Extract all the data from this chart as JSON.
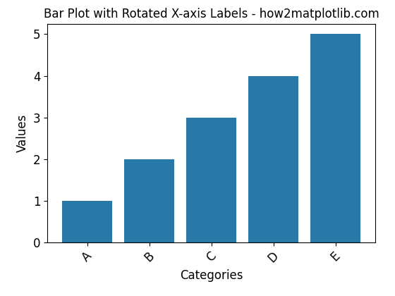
{
  "categories": [
    "A",
    "B",
    "C",
    "D",
    "E"
  ],
  "values": [
    1,
    2,
    3,
    4,
    5
  ],
  "bar_color": "#2878a8",
  "title": "Bar Plot with Rotated X-axis Labels - how2matplotlib.com",
  "xlabel": "Categories",
  "ylabel": "Values",
  "ylim": [
    0,
    5.25
  ],
  "title_fontsize": 12,
  "label_fontsize": 12,
  "tick_fontsize": 12,
  "xtick_rotation": 45,
  "xtick_ha": "center"
}
